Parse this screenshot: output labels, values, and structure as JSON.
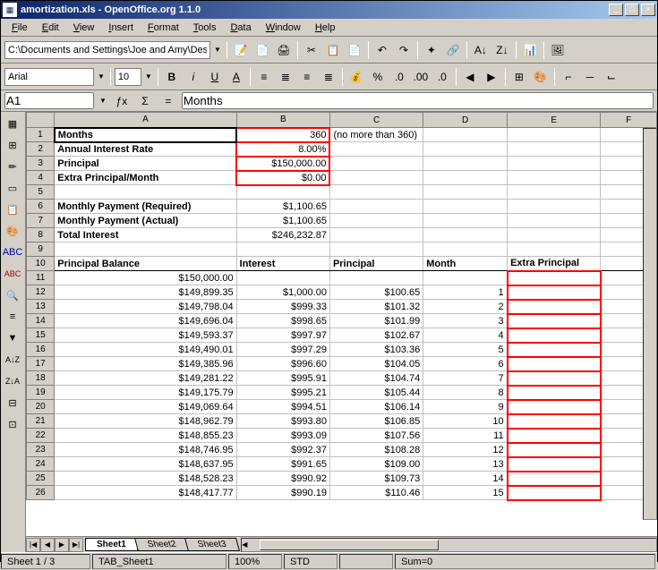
{
  "title": "amortization.xls - OpenOffice.org 1.1.0",
  "menu": [
    "File",
    "Edit",
    "View",
    "Insert",
    "Format",
    "Tools",
    "Data",
    "Window",
    "Help"
  ],
  "path": "C:\\Documents and Settings\\Joe and Amy\\Desktop\\",
  "font": {
    "name": "Arial",
    "size": "10"
  },
  "cellref": "A1",
  "formula": "Months",
  "columns": [
    "A",
    "B",
    "C",
    "D",
    "E",
    "F"
  ],
  "col_widths": {
    "A": 195,
    "B": 100,
    "C": 100,
    "D": 90,
    "E": 100,
    "F": 60
  },
  "input_rows": [
    {
      "n": 1,
      "a": "Months",
      "b": "360",
      "c": "(no more than 360)",
      "redB": true,
      "boldA": true,
      "activeA": true
    },
    {
      "n": 2,
      "a": "Annual Interest Rate",
      "b": "8.00%",
      "redB": true,
      "boldA": true
    },
    {
      "n": 3,
      "a": "Principal",
      "b": "$150,000.00",
      "redB": true,
      "boldA": true
    },
    {
      "n": 4,
      "a": "Extra Principal/Month",
      "b": "$0.00",
      "redB": true,
      "boldA": true
    },
    {
      "n": 5
    },
    {
      "n": 6,
      "a": "Monthly Payment (Required)",
      "b": "$1,100.65",
      "boldA": true
    },
    {
      "n": 7,
      "a": "Monthly Payment (Actual)",
      "b": "$1,100.65",
      "boldA": true
    },
    {
      "n": 8,
      "a": "Total Interest",
      "b": "$246,232.87",
      "boldA": true
    },
    {
      "n": 9
    }
  ],
  "header_row": {
    "n": 10,
    "a": "Principal Balance",
    "b": "Interest",
    "c": "Principal",
    "d": "Month",
    "e": "Extra Principal"
  },
  "data_rows": [
    {
      "n": 11,
      "a": "$150,000.00",
      "redE": true
    },
    {
      "n": 12,
      "a": "$149,899.35",
      "b": "$1,000.00",
      "c": "$100.65",
      "d": "1",
      "redE": true
    },
    {
      "n": 13,
      "a": "$149,798.04",
      "b": "$999.33",
      "c": "$101.32",
      "d": "2",
      "redE": true
    },
    {
      "n": 14,
      "a": "$149,696.04",
      "b": "$998.65",
      "c": "$101.99",
      "d": "3",
      "redE": true
    },
    {
      "n": 15,
      "a": "$149,593.37",
      "b": "$997.97",
      "c": "$102.67",
      "d": "4",
      "redE": true
    },
    {
      "n": 16,
      "a": "$149,490.01",
      "b": "$997.29",
      "c": "$103.36",
      "d": "5",
      "redE": true
    },
    {
      "n": 17,
      "a": "$149,385.96",
      "b": "$996.60",
      "c": "$104.05",
      "d": "6",
      "redE": true
    },
    {
      "n": 18,
      "a": "$149,281.22",
      "b": "$995.91",
      "c": "$104.74",
      "d": "7",
      "redE": true
    },
    {
      "n": 19,
      "a": "$149,175.79",
      "b": "$995.21",
      "c": "$105.44",
      "d": "8",
      "redE": true
    },
    {
      "n": 20,
      "a": "$149,069.64",
      "b": "$994.51",
      "c": "$106.14",
      "d": "9",
      "redE": true
    },
    {
      "n": 21,
      "a": "$148,962.79",
      "b": "$993.80",
      "c": "$106.85",
      "d": "10",
      "redE": true
    },
    {
      "n": 22,
      "a": "$148,855.23",
      "b": "$993.09",
      "c": "$107.56",
      "d": "11",
      "redE": true
    },
    {
      "n": 23,
      "a": "$148,746.95",
      "b": "$992.37",
      "c": "$108.28",
      "d": "12",
      "redE": true
    },
    {
      "n": 24,
      "a": "$148,637.95",
      "b": "$991.65",
      "c": "$109.00",
      "d": "13",
      "redE": true
    },
    {
      "n": 25,
      "a": "$148,528.23",
      "b": "$990.92",
      "c": "$109.73",
      "d": "14",
      "redE": true
    },
    {
      "n": 26,
      "a": "$148,417.77",
      "b": "$990.19",
      "c": "$110.46",
      "d": "15",
      "redE": true
    }
  ],
  "tabs": [
    "Sheet1",
    "Sheet2",
    "Sheet3"
  ],
  "active_tab": 0,
  "status": {
    "page": "Sheet 1 / 3",
    "template": "TAB_Sheet1",
    "zoom": "100%",
    "mode": "STD",
    "sum": "Sum=0"
  },
  "colors": {
    "red": "#ff0000",
    "titlebar_start": "#0a246a",
    "titlebar_end": "#a6caf0",
    "ui_bg": "#d4d0c8",
    "grid_line": "#c0c0c0"
  }
}
